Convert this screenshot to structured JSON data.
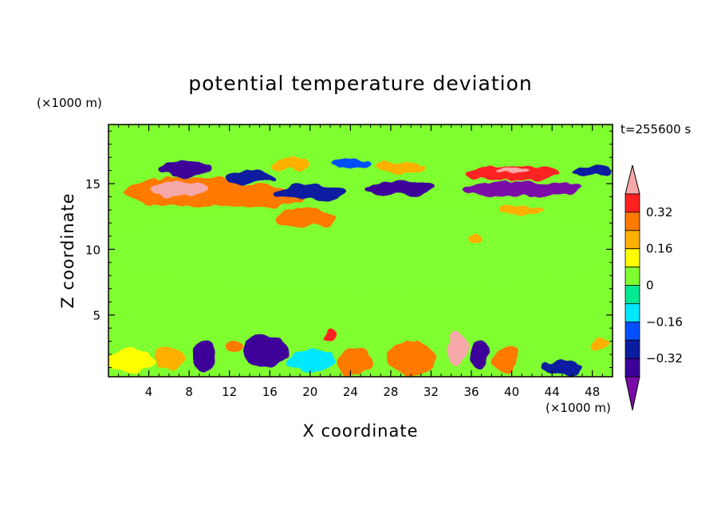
{
  "chart_data": {
    "type": "heatmap",
    "title": "potential temperature deviation",
    "xlabel": "X coordinate",
    "ylabel": "Z coordinate",
    "x_units": "(×1000 m)",
    "y_units": "(×1000 m)",
    "time_label": "t=255600 s",
    "xlim": [
      0,
      50
    ],
    "ylim": [
      0.3,
      19.5
    ],
    "xticks": [
      4,
      8,
      12,
      16,
      20,
      24,
      28,
      32,
      36,
      40,
      44,
      48
    ],
    "yticks": [
      5,
      10,
      15
    ],
    "colorbar": {
      "levels": [
        -0.48,
        -0.4,
        -0.32,
        -0.24,
        -0.16,
        -0.08,
        0,
        0.08,
        0.16,
        0.24,
        0.32,
        0.4,
        0.48
      ],
      "labeled_levels": [
        0.32,
        0.16,
        0,
        -0.16,
        -0.32
      ],
      "colors_low_to_high": [
        "#7a0aa8",
        "#3c0099",
        "#0a1ca0",
        "#0050ff",
        "#00e8ff",
        "#00e890",
        "#80ff30",
        "#ffff00",
        "#ffb000",
        "#ff7a00",
        "#ff2020",
        "#f6a8a8"
      ],
      "extend": "both"
    },
    "background_level_color": "#80ff30",
    "features": [
      {
        "kind": "ellipse",
        "x": 25,
        "y": 10,
        "rx": 25,
        "ry": 3,
        "value": 0.0
      },
      {
        "kind": "ellipse",
        "x": 8,
        "y": 14.4,
        "rx": 6.5,
        "ry": 1.1,
        "value": 0.3
      },
      {
        "kind": "ellipse",
        "x": 7,
        "y": 14.6,
        "rx": 3,
        "ry": 0.55,
        "value": 0.45
      },
      {
        "kind": "ellipse",
        "x": 15,
        "y": 14.0,
        "rx": 4.5,
        "ry": 0.8,
        "value": 0.28
      },
      {
        "kind": "ellipse",
        "x": 19.5,
        "y": 12.4,
        "rx": 3,
        "ry": 0.7,
        "value": 0.3
      },
      {
        "kind": "ellipse",
        "x": 7.5,
        "y": 16.1,
        "rx": 2.5,
        "ry": 0.6,
        "value": -0.4
      },
      {
        "kind": "ellipse",
        "x": 14,
        "y": 15.5,
        "rx": 2.5,
        "ry": 0.5,
        "value": -0.3
      },
      {
        "kind": "ellipse",
        "x": 18,
        "y": 16.5,
        "rx": 2,
        "ry": 0.45,
        "value": 0.2
      },
      {
        "kind": "ellipse",
        "x": 20,
        "y": 14.3,
        "rx": 3.5,
        "ry": 0.5,
        "value": -0.3
      },
      {
        "kind": "ellipse",
        "x": 24,
        "y": 16.5,
        "rx": 2,
        "ry": 0.45,
        "value": -0.2
      },
      {
        "kind": "ellipse",
        "x": 29,
        "y": 16.2,
        "rx": 2.5,
        "ry": 0.5,
        "value": 0.22
      },
      {
        "kind": "ellipse",
        "x": 29,
        "y": 14.7,
        "rx": 3.5,
        "ry": 0.6,
        "value": -0.36
      },
      {
        "kind": "ellipse",
        "x": 40,
        "y": 15.8,
        "rx": 4.5,
        "ry": 0.55,
        "value": 0.34
      },
      {
        "kind": "ellipse",
        "x": 40,
        "y": 16.0,
        "rx": 1.5,
        "ry": 0.25,
        "value": 0.45
      },
      {
        "kind": "ellipse",
        "x": 41,
        "y": 14.6,
        "rx": 6,
        "ry": 0.6,
        "value": -0.44
      },
      {
        "kind": "ellipse",
        "x": 48,
        "y": 16.0,
        "rx": 2,
        "ry": 0.45,
        "value": -0.3
      },
      {
        "kind": "ellipse",
        "x": 41,
        "y": 13.0,
        "rx": 2,
        "ry": 0.4,
        "value": 0.2
      },
      {
        "kind": "ellipse",
        "x": 36.5,
        "y": 10.8,
        "rx": 0.8,
        "ry": 0.4,
        "value": 0.2
      },
      {
        "kind": "ellipse",
        "x": 2,
        "y": 1.5,
        "rx": 2.5,
        "ry": 0.8,
        "value": 0.12
      },
      {
        "kind": "ellipse",
        "x": 6,
        "y": 1.7,
        "rx": 1.5,
        "ry": 1.0,
        "value": 0.2
      },
      {
        "kind": "ellipse",
        "x": 9.5,
        "y": 1.8,
        "rx": 1.2,
        "ry": 1.2,
        "value": -0.38
      },
      {
        "kind": "ellipse",
        "x": 12.5,
        "y": 2.7,
        "rx": 0.8,
        "ry": 0.5,
        "value": 0.3
      },
      {
        "kind": "ellipse",
        "x": 15.5,
        "y": 2.3,
        "rx": 2.2,
        "ry": 1.2,
        "value": -0.38
      },
      {
        "kind": "ellipse",
        "x": 20,
        "y": 1.5,
        "rx": 2.5,
        "ry": 0.8,
        "value": -0.1
      },
      {
        "kind": "ellipse",
        "x": 22,
        "y": 3.5,
        "rx": 0.6,
        "ry": 0.5,
        "value": 0.34
      },
      {
        "kind": "ellipse",
        "x": 24.5,
        "y": 1.5,
        "rx": 1.8,
        "ry": 1.0,
        "value": 0.25
      },
      {
        "kind": "ellipse",
        "x": 30,
        "y": 1.7,
        "rx": 2.5,
        "ry": 1.3,
        "value": 0.26
      },
      {
        "kind": "ellipse",
        "x": 34.5,
        "y": 2.5,
        "rx": 1,
        "ry": 1.2,
        "value": 0.45
      },
      {
        "kind": "ellipse",
        "x": 36.8,
        "y": 2.0,
        "rx": 1,
        "ry": 1.1,
        "value": -0.35
      },
      {
        "kind": "ellipse",
        "x": 39.5,
        "y": 1.6,
        "rx": 1.2,
        "ry": 1.0,
        "value": 0.25
      },
      {
        "kind": "ellipse",
        "x": 45,
        "y": 1.0,
        "rx": 2,
        "ry": 0.6,
        "value": -0.3
      },
      {
        "kind": "ellipse",
        "x": 48.5,
        "y": 2.9,
        "rx": 1,
        "ry": 0.4,
        "value": 0.2
      }
    ]
  }
}
